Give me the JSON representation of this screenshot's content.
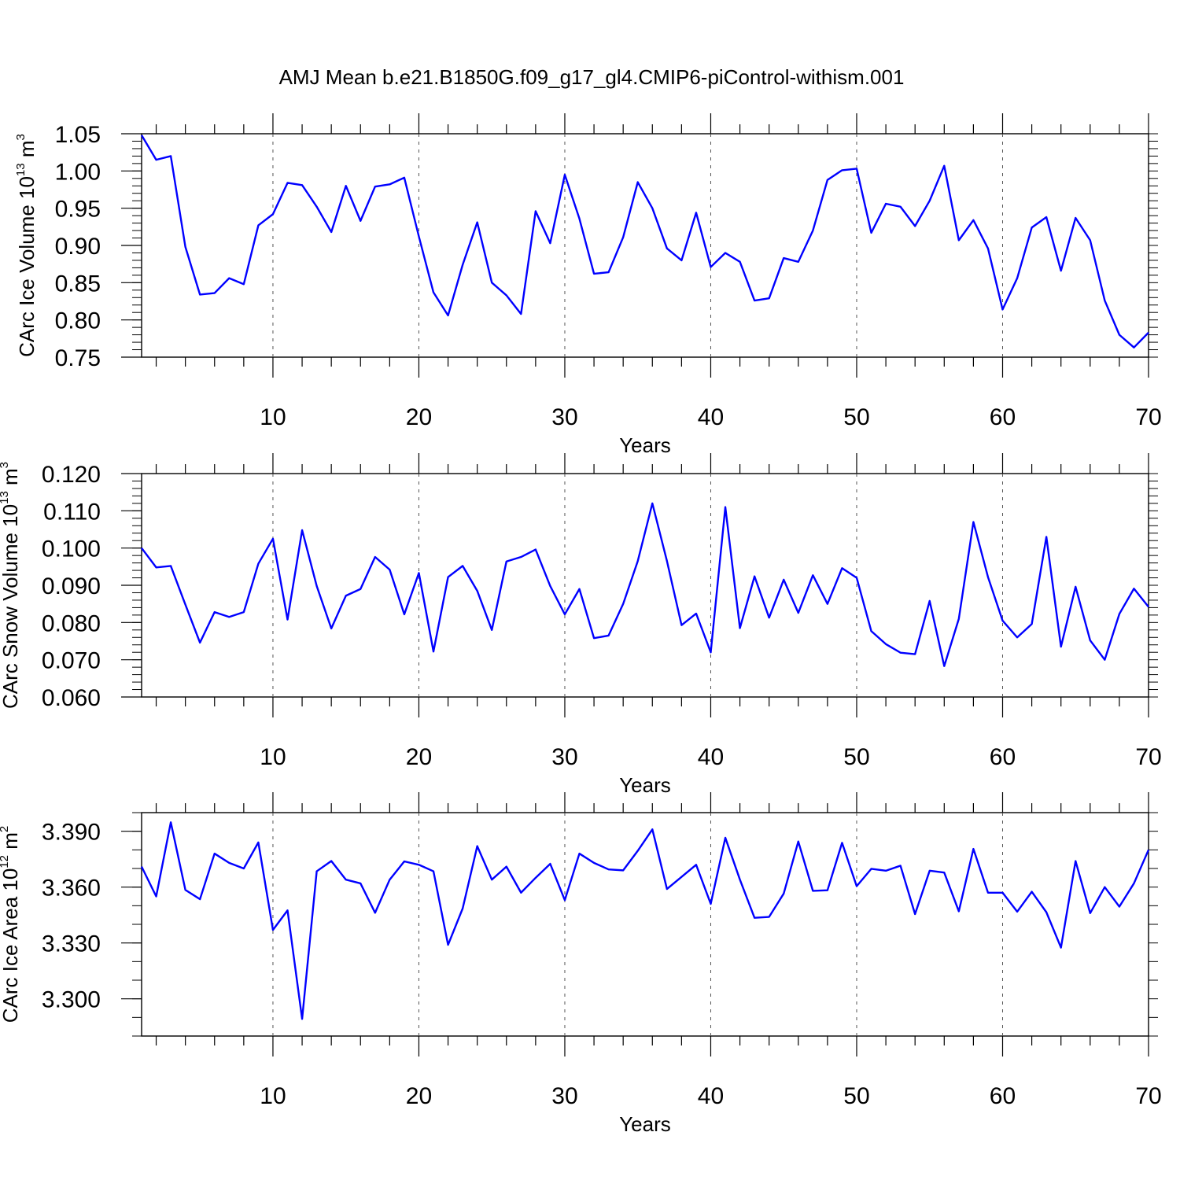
{
  "title": "AMJ Mean b.e21.B1850G.f09_g17_gl4.CMIP6-piControl-withism.001",
  "chart_data": [
    {
      "type": "line",
      "ylabel": "CArc Ice Volume 10",
      "ylabel_exp": "13",
      "ylabel_unit": "m",
      "ylabel_unit_exp": "3",
      "xlabel": "Years",
      "xlim": [
        1,
        70
      ],
      "ylim": [
        0.75,
        1.05
      ],
      "yticks": [
        "0.75",
        "0.80",
        "0.85",
        "0.90",
        "0.95",
        "1.00",
        "1.05"
      ],
      "xticks": [
        "10",
        "20",
        "30",
        "40",
        "50",
        "60",
        "70"
      ],
      "line_color": "#0000ff",
      "x": [
        1,
        2,
        3,
        4,
        5,
        6,
        7,
        8,
        9,
        10,
        11,
        12,
        13,
        14,
        15,
        16,
        17,
        18,
        19,
        20,
        21,
        22,
        23,
        24,
        25,
        26,
        27,
        28,
        29,
        30,
        31,
        32,
        33,
        34,
        35,
        36,
        37,
        38,
        39,
        40,
        41,
        42,
        43,
        44,
        45,
        46,
        47,
        48,
        49,
        50,
        51,
        52,
        53,
        54,
        55,
        56,
        57,
        58,
        59,
        60,
        61,
        62,
        63,
        64,
        65,
        66,
        67,
        68,
        69,
        70
      ],
      "y": [
        1.048,
        1.015,
        1.02,
        0.898,
        0.834,
        0.836,
        0.856,
        0.848,
        0.927,
        0.942,
        0.984,
        0.981,
        0.952,
        0.918,
        0.98,
        0.933,
        0.979,
        0.982,
        0.991,
        0.912,
        0.837,
        0.806,
        0.874,
        0.931,
        0.85,
        0.833,
        0.808,
        0.946,
        0.903,
        0.995,
        0.936,
        0.862,
        0.864,
        0.911,
        0.985,
        0.95,
        0.896,
        0.88,
        0.944,
        0.871,
        0.89,
        0.878,
        0.826,
        0.829,
        0.883,
        0.878,
        0.92,
        0.988,
        1.001,
        1.003,
        0.917,
        0.956,
        0.952,
        0.926,
        0.96,
        1.007,
        0.907,
        0.934,
        0.896,
        0.814,
        0.856,
        0.924,
        0.938,
        0.866,
        0.937,
        0.907,
        0.826,
        0.78,
        0.763,
        0.783
      ]
    },
    {
      "type": "line",
      "ylabel": "CArc Snow Volume 10",
      "ylabel_exp": "13",
      "ylabel_unit": "m",
      "ylabel_unit_exp": "3",
      "xlabel": "Years",
      "xlim": [
        1,
        70
      ],
      "ylim": [
        0.06,
        0.12
      ],
      "yticks": [
        "0.060",
        "0.070",
        "0.080",
        "0.090",
        "0.100",
        "0.110",
        "0.120"
      ],
      "xticks": [
        "10",
        "20",
        "30",
        "40",
        "50",
        "60",
        "70"
      ],
      "line_color": "#0000ff",
      "x": [
        1,
        2,
        3,
        4,
        5,
        6,
        7,
        8,
        9,
        10,
        11,
        12,
        13,
        14,
        15,
        16,
        17,
        18,
        19,
        20,
        21,
        22,
        23,
        24,
        25,
        26,
        27,
        28,
        29,
        30,
        31,
        32,
        33,
        34,
        35,
        36,
        37,
        38,
        39,
        40,
        41,
        42,
        43,
        44,
        45,
        46,
        47,
        48,
        49,
        50,
        51,
        52,
        53,
        54,
        55,
        56,
        57,
        58,
        59,
        60,
        61,
        62,
        63,
        64,
        65,
        66,
        67,
        68,
        69,
        70
      ],
      "y": [
        0.1,
        0.0948,
        0.0952,
        0.0848,
        0.0746,
        0.0828,
        0.0815,
        0.0828,
        0.0958,
        0.1025,
        0.0808,
        0.1048,
        0.0898,
        0.0784,
        0.0872,
        0.089,
        0.0976,
        0.0942,
        0.0822,
        0.0933,
        0.0722,
        0.0922,
        0.0952,
        0.0885,
        0.078,
        0.0964,
        0.0976,
        0.0996,
        0.0898,
        0.0822,
        0.089,
        0.0758,
        0.0765,
        0.085,
        0.0965,
        0.112,
        0.0965,
        0.0793,
        0.0824,
        0.072,
        0.111,
        0.0785,
        0.0924,
        0.0813,
        0.0915,
        0.0826,
        0.0927,
        0.085,
        0.0946,
        0.092,
        0.0777,
        0.0742,
        0.0719,
        0.0715,
        0.0858,
        0.0683,
        0.081,
        0.107,
        0.0922,
        0.0805,
        0.076,
        0.0796,
        0.103,
        0.0735,
        0.0896,
        0.0752,
        0.07,
        0.0823,
        0.0891,
        0.0842
      ]
    },
    {
      "type": "line",
      "ylabel": "CArc Ice Area 10",
      "ylabel_exp": "12",
      "ylabel_unit": "m",
      "ylabel_unit_exp": "2",
      "xlabel": "Years",
      "xlim": [
        1,
        70
      ],
      "ylim": [
        3.28,
        3.4
      ],
      "yticks": [
        "3.300",
        "3.330",
        "3.360",
        "3.390"
      ],
      "xticks": [
        "10",
        "20",
        "30",
        "40",
        "50",
        "60",
        "70"
      ],
      "line_color": "#0000ff",
      "x": [
        1,
        2,
        3,
        4,
        5,
        6,
        7,
        8,
        9,
        10,
        11,
        12,
        13,
        14,
        15,
        16,
        17,
        18,
        19,
        20,
        21,
        22,
        23,
        24,
        25,
        26,
        27,
        28,
        29,
        30,
        31,
        32,
        33,
        34,
        35,
        36,
        37,
        38,
        39,
        40,
        41,
        42,
        43,
        44,
        45,
        46,
        47,
        48,
        49,
        50,
        51,
        52,
        53,
        54,
        55,
        56,
        57,
        58,
        59,
        60,
        61,
        62,
        63,
        64,
        65,
        66,
        67,
        68,
        69,
        70
      ],
      "y": [
        3.371,
        3.355,
        3.3948,
        3.3585,
        3.3535,
        3.378,
        3.373,
        3.37,
        3.384,
        3.337,
        3.3475,
        3.2892,
        3.3685,
        3.374,
        3.364,
        3.362,
        3.3462,
        3.364,
        3.3738,
        3.372,
        3.3685,
        3.329,
        3.3485,
        3.382,
        3.364,
        3.371,
        3.357,
        3.365,
        3.3725,
        3.353,
        3.378,
        3.373,
        3.3695,
        3.369,
        3.3795,
        3.391,
        3.359,
        3.3655,
        3.372,
        3.351,
        3.3865,
        3.364,
        3.3435,
        3.344,
        3.3565,
        3.3845,
        3.358,
        3.3583,
        3.3838,
        3.3605,
        3.3698,
        3.3688,
        3.3715,
        3.3455,
        3.3688,
        3.3678,
        3.347,
        3.3805,
        3.357,
        3.357,
        3.3468,
        3.3575,
        3.3465,
        3.3275,
        3.374,
        3.346,
        3.36,
        3.3495,
        3.362,
        3.38
      ]
    }
  ]
}
